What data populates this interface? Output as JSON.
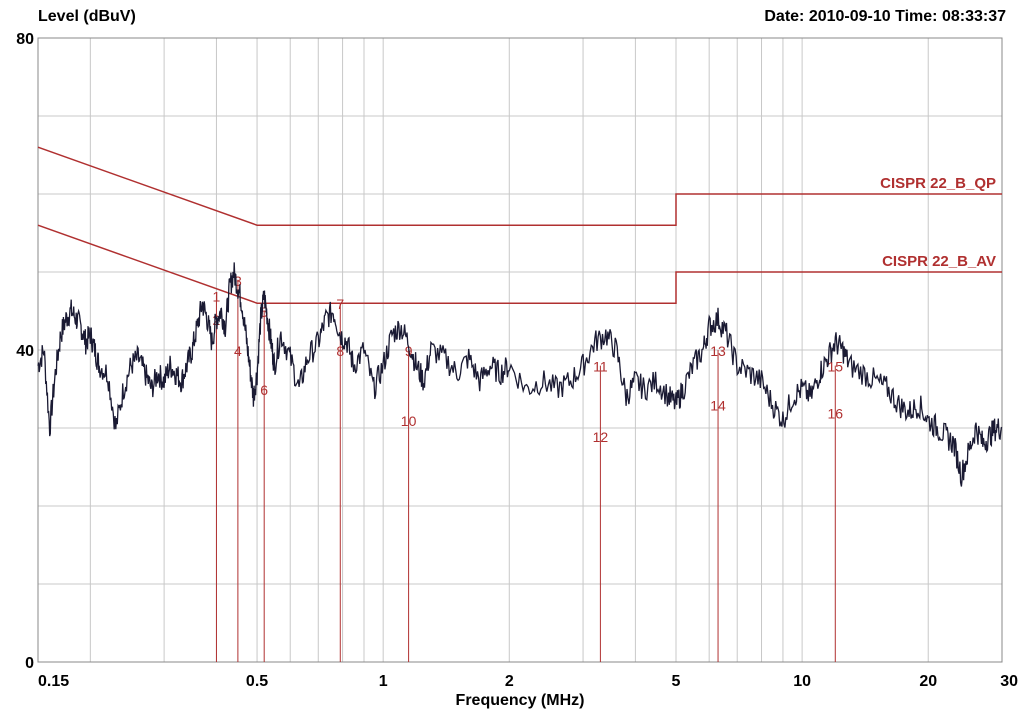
{
  "chart_data": {
    "type": "line",
    "ylabel": "Level (dBuV)",
    "xlabel": "Frequency (MHz)",
    "datetime_text": "Date: 2010-09-10  Time: 08:33:37",
    "xscale": "log",
    "xlim": [
      0.15,
      30
    ],
    "ylim": [
      0,
      80
    ],
    "x_ticks": [
      0.15,
      0.5,
      1,
      2,
      5,
      10,
      20,
      30
    ],
    "x_tick_labels": [
      "0.15",
      "0.5",
      "1",
      "2",
      "5",
      "10",
      "20",
      "30"
    ],
    "y_ticks": [
      0,
      40,
      80
    ],
    "y_tick_labels": [
      "0",
      "40",
      "80"
    ],
    "y_grid": [
      0,
      10,
      20,
      30,
      40,
      50,
      60,
      70,
      80
    ],
    "grid": true,
    "colors": {
      "trace": "#1a1a33",
      "limit": "#b03030",
      "marker": "#b03030",
      "grid": "#c8c8c8"
    },
    "limit_lines": [
      {
        "label": "CISPR 22_B_QP",
        "points": [
          [
            0.15,
            66
          ],
          [
            0.5,
            56
          ],
          [
            5,
            56
          ],
          [
            5,
            60
          ],
          [
            30,
            60
          ]
        ]
      },
      {
        "label": "CISPR 22_B_AV",
        "points": [
          [
            0.15,
            56
          ],
          [
            0.5,
            46
          ],
          [
            5,
            46
          ],
          [
            5,
            50
          ],
          [
            30,
            50
          ]
        ]
      }
    ],
    "trace": {
      "x": [
        0.15,
        0.155,
        0.16,
        0.165,
        0.17,
        0.175,
        0.18,
        0.185,
        0.19,
        0.195,
        0.2,
        0.205,
        0.21,
        0.22,
        0.23,
        0.24,
        0.25,
        0.26,
        0.27,
        0.28,
        0.29,
        0.3,
        0.31,
        0.32,
        0.33,
        0.34,
        0.35,
        0.36,
        0.37,
        0.38,
        0.39,
        0.4,
        0.41,
        0.42,
        0.43,
        0.44,
        0.45,
        0.46,
        0.47,
        0.48,
        0.49,
        0.5,
        0.51,
        0.52,
        0.53,
        0.54,
        0.55,
        0.57,
        0.6,
        0.63,
        0.66,
        0.7,
        0.73,
        0.76,
        0.79,
        0.82,
        0.85,
        0.9,
        0.95,
        1.0,
        1.05,
        1.1,
        1.15,
        1.2,
        1.25,
        1.3,
        1.4,
        1.5,
        1.6,
        1.7,
        1.8,
        1.9,
        2.0,
        2.2,
        2.4,
        2.6,
        2.8,
        3.0,
        3.2,
        3.4,
        3.6,
        3.8,
        4.0,
        4.2,
        4.5,
        4.8,
        5.0,
        5.2,
        5.5,
        5.8,
        6.0,
        6.3,
        6.6,
        7.0,
        7.5,
        8.0,
        8.5,
        9.0,
        9.5,
        10.0,
        10.5,
        11.0,
        11.5,
        12.0,
        12.5,
        13.0,
        14.0,
        15.0,
        16.0,
        17.0,
        18.0,
        19.0,
        20.0,
        21.0,
        22.0,
        23.0,
        24.0,
        25.0,
        26.0,
        27.0,
        28.0,
        29.0,
        30.0
      ],
      "y": [
        38,
        40,
        30,
        37,
        42,
        44,
        45,
        44,
        43,
        41,
        42,
        40,
        38,
        37,
        30,
        35,
        38,
        39,
        37,
        35,
        37,
        36,
        38,
        37,
        36,
        38,
        40,
        43,
        46,
        44,
        41,
        44,
        45,
        43,
        48,
        50,
        48,
        46,
        42,
        38,
        34,
        37,
        44,
        47,
        44,
        41,
        38,
        42,
        39,
        35,
        39,
        41,
        44,
        45,
        42,
        41,
        38,
        40,
        35,
        38,
        42,
        43,
        41,
        38,
        36,
        40,
        39,
        37,
        39,
        36,
        38,
        37,
        38,
        35,
        36,
        35,
        36,
        38,
        41,
        42,
        40,
        34,
        36,
        35,
        36,
        34,
        33,
        35,
        38,
        40,
        43,
        44,
        42,
        38,
        37,
        36,
        33,
        31,
        34,
        35,
        34,
        37,
        39,
        41,
        40,
        38,
        37,
        36,
        35,
        33,
        32,
        33,
        31,
        30,
        29,
        28,
        24,
        27,
        30,
        28,
        29,
        30,
        30
      ]
    },
    "markers": [
      {
        "label": "1",
        "x": 0.4,
        "level": 47
      },
      {
        "label": "2",
        "x": 0.4,
        "level": 44
      },
      {
        "label": "3",
        "x": 0.45,
        "level": 49
      },
      {
        "label": "4",
        "x": 0.45,
        "level": 40
      },
      {
        "label": "5",
        "x": 0.52,
        "level": 45
      },
      {
        "label": "6",
        "x": 0.52,
        "level": 35
      },
      {
        "label": "7",
        "x": 0.79,
        "level": 46
      },
      {
        "label": "8",
        "x": 0.79,
        "level": 40
      },
      {
        "label": "9",
        "x": 1.15,
        "level": 40
      },
      {
        "label": "10",
        "x": 1.15,
        "level": 31
      },
      {
        "label": "11",
        "x": 3.3,
        "level": 38
      },
      {
        "label": "12",
        "x": 3.3,
        "level": 29
      },
      {
        "label": "13",
        "x": 6.3,
        "level": 40
      },
      {
        "label": "14",
        "x": 6.3,
        "level": 33
      },
      {
        "label": "15",
        "x": 12.0,
        "level": 38
      },
      {
        "label": "16",
        "x": 12.0,
        "level": 32
      }
    ]
  }
}
